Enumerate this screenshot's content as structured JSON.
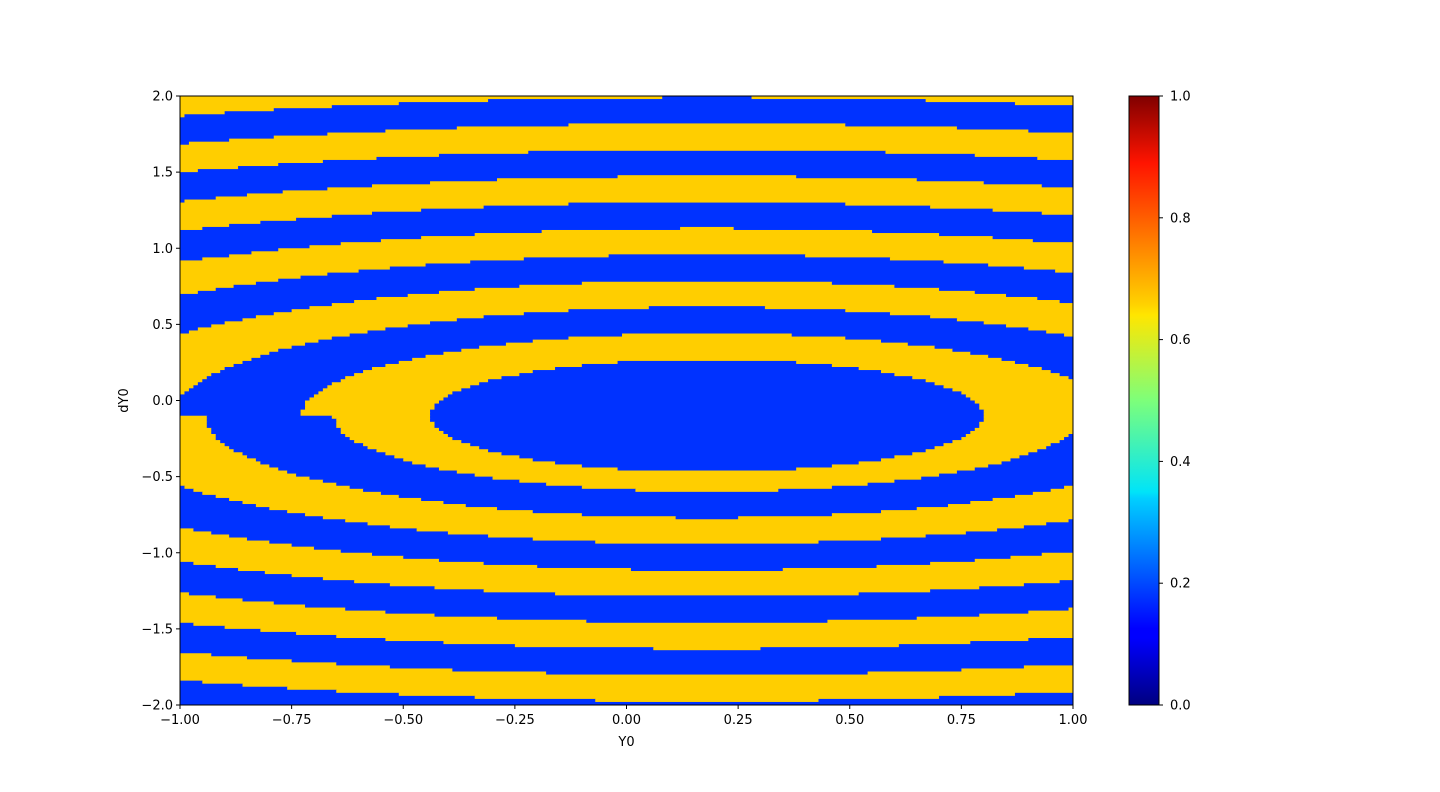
{
  "chart_data": {
    "type": "heatmap",
    "xlabel": "Y0",
    "ylabel": "dY0",
    "xlim": [
      -1.0,
      1.0
    ],
    "ylim": [
      -2.0,
      2.0
    ],
    "xticks": [
      "−1.00",
      "−0.75",
      "−0.50",
      "−0.25",
      "0.00",
      "0.25",
      "0.50",
      "0.75",
      "1.00"
    ],
    "yticks": [
      "−2.0",
      "−1.5",
      "−1.0",
      "−0.5",
      "0.0",
      "0.5",
      "1.0",
      "1.5",
      "2.0"
    ],
    "xtick_values": [
      -1.0,
      -0.75,
      -0.5,
      -0.25,
      0.0,
      0.25,
      0.5,
      0.75,
      1.0
    ],
    "ytick_values": [
      -2.0,
      -1.5,
      -1.0,
      -0.5,
      0.0,
      0.5,
      1.0,
      1.5,
      2.0
    ],
    "colormap": "jet",
    "colorbar": {
      "range": [
        0.0,
        1.0
      ],
      "ticks": [
        "0.0",
        "0.2",
        "0.4",
        "0.6",
        "0.8",
        "1.0"
      ],
      "tick_values": [
        0.0,
        0.2,
        0.4,
        0.6,
        0.8,
        1.0
      ]
    },
    "field": {
      "description": "two-valued basin map, spiral bands",
      "values": [
        0.2,
        0.7
      ],
      "colors": [
        "#0032ff",
        "#ffce00"
      ],
      "resolution": [
        200,
        200
      ]
    },
    "grid": false
  }
}
